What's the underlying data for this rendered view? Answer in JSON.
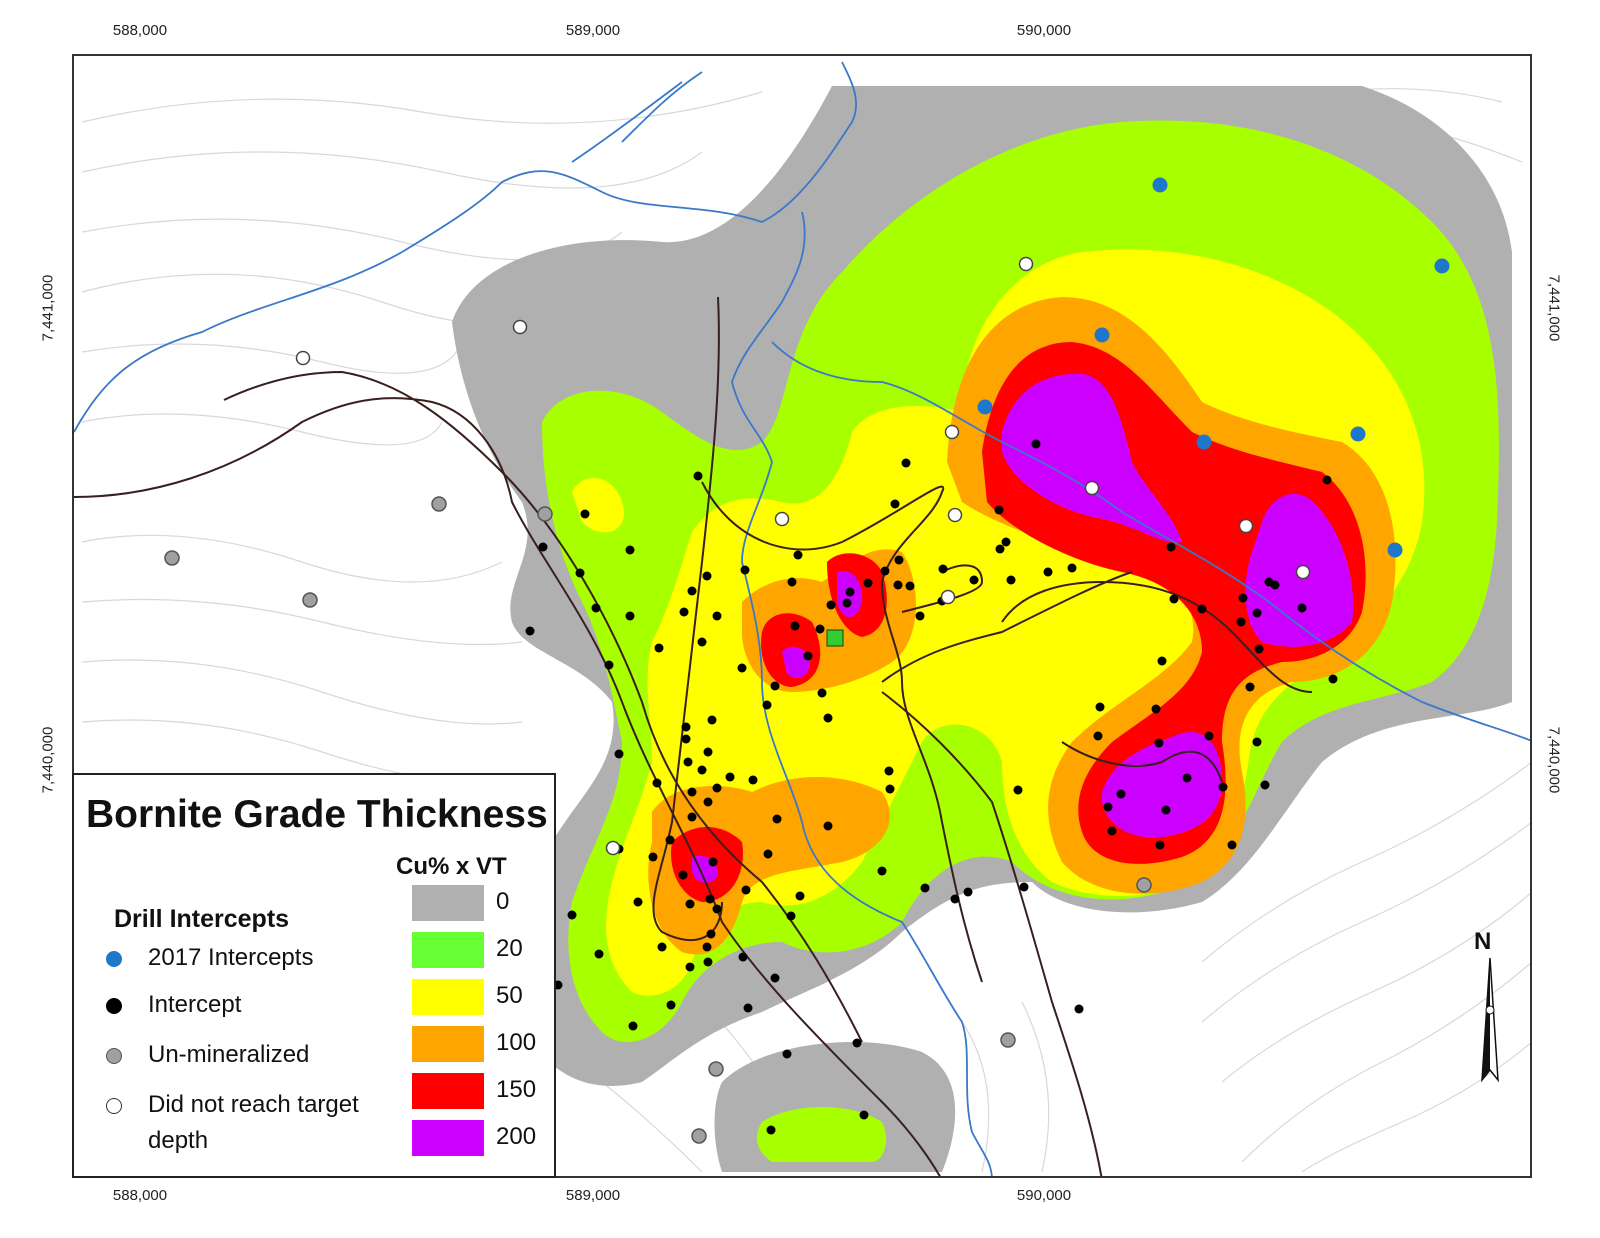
{
  "map": {
    "title": "Bornite Grade Thickness",
    "ticks": {
      "easting": [
        "588,000",
        "589,000",
        "590,000"
      ],
      "northing": [
        "7,441,000",
        "7,440,000"
      ]
    }
  },
  "legend": {
    "title": "Bornite Grade Thickness",
    "scale_title": "Cu% x VT",
    "classes": [
      {
        "value": "0",
        "color": "#b0b0b0"
      },
      {
        "value": "20",
        "color": "#66ff33"
      },
      {
        "value": "50",
        "color": "#ffff00"
      },
      {
        "value": "100",
        "color": "#ffa500"
      },
      {
        "value": "150",
        "color": "#ff0000"
      },
      {
        "value": "200",
        "color": "#cc00ff"
      }
    ],
    "drill_title": "Drill Intercepts",
    "drill_items": [
      {
        "label": "2017 Intercepts",
        "symbol": "blue-dot",
        "color": "#1f77c9"
      },
      {
        "label": "Intercept",
        "symbol": "black-dot",
        "color": "#000000"
      },
      {
        "label": "Un-mineralized",
        "symbol": "gray-dot",
        "color": "#a0a0a0"
      },
      {
        "label": "Did not reach target depth",
        "symbol": "white-dot",
        "color": "#ffffff"
      }
    ]
  },
  "north_arrow": {
    "label": "N"
  }
}
